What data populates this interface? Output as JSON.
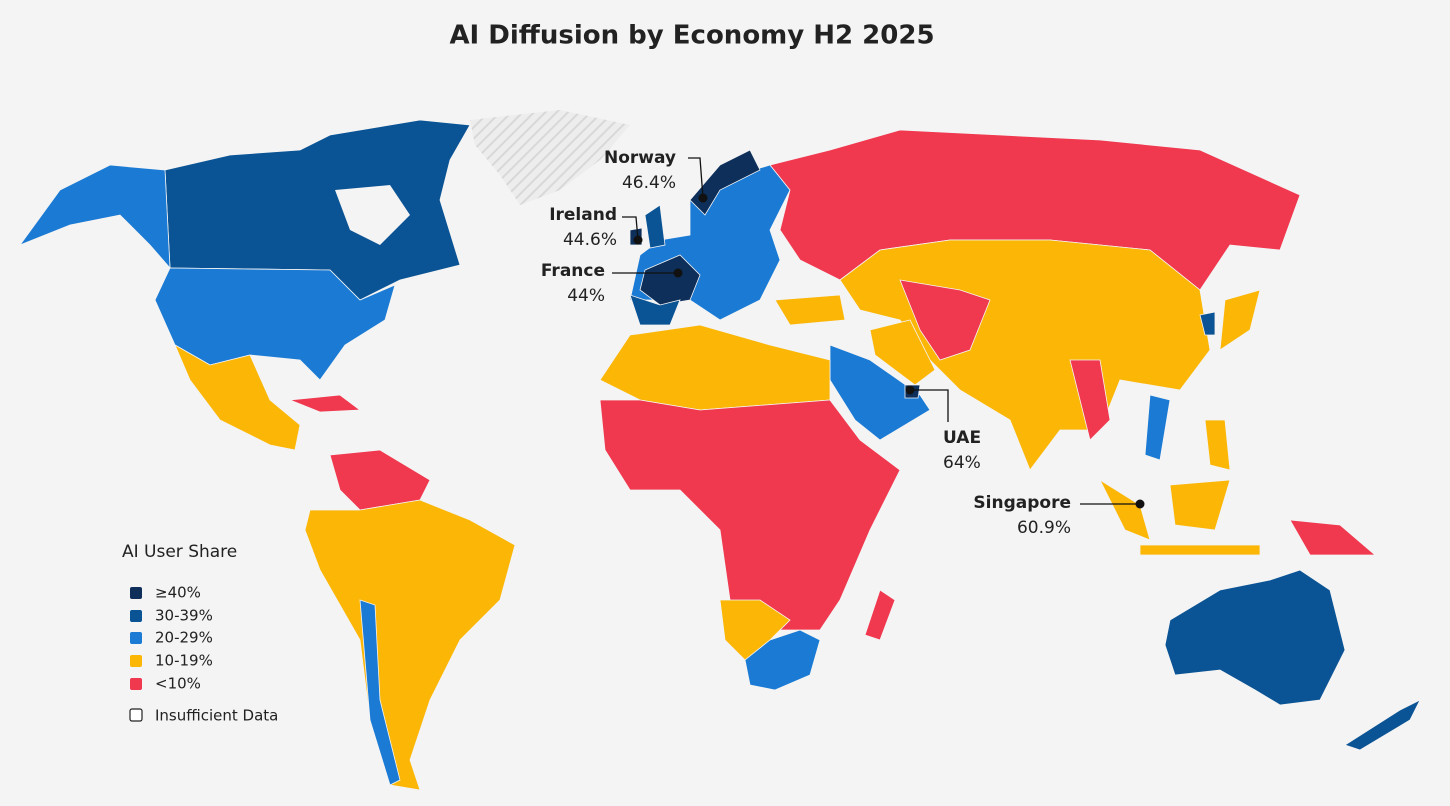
{
  "chart_data": {
    "type": "choropleth",
    "title": "AI Diffusion by Economy H2 2025",
    "legend": {
      "title": "AI User Share",
      "items": [
        {
          "label": "≥40%",
          "color": "#0d2f5a"
        },
        {
          "label": "30-39%",
          "color": "#0a5394"
        },
        {
          "label": "20-29%",
          "color": "#1a7ad4"
        },
        {
          "label": "10-19%",
          "color": "#fbb606"
        },
        {
          "label": "<10%",
          "color": "#f0384f"
        }
      ],
      "insufficient": "Insufficient Data"
    },
    "callouts": {
      "names": [
        "Norway",
        "Ireland",
        "France",
        "UAE",
        "Singapore"
      ],
      "values": [
        46.4,
        44.6,
        44,
        64,
        60.9
      ],
      "value_labels": [
        "46.4%",
        "44.6%",
        "44%",
        "64%",
        "60.9%"
      ]
    }
  }
}
